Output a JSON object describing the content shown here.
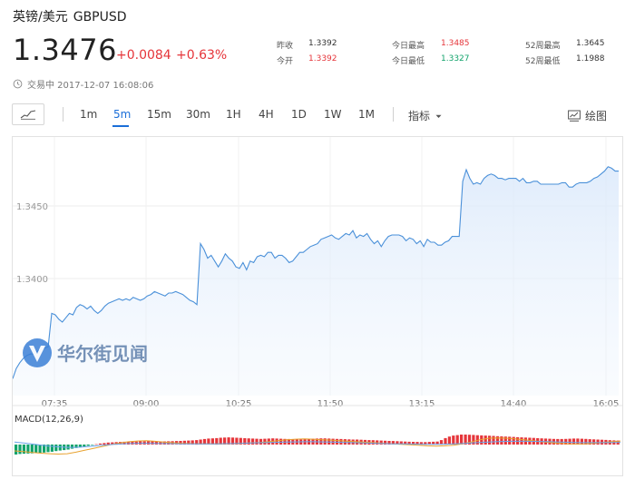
{
  "header": {
    "name": "英镑/美元",
    "code": "GBPUSD",
    "price": "1.3476",
    "change": "+0.0084",
    "change_pct": "+0.63%",
    "status": "交易中 2017-12-07 16:08:06"
  },
  "stats": [
    {
      "label": "昨收",
      "value": "1.3392",
      "tone": "neutral"
    },
    {
      "label": "今开",
      "value": "1.3392",
      "tone": "up"
    },
    {
      "label": "今日最高",
      "value": "1.3485",
      "tone": "up"
    },
    {
      "label": "今日最低",
      "value": "1.3327",
      "tone": "down"
    },
    {
      "label": "52周最高",
      "value": "1.3645",
      "tone": "neutral"
    },
    {
      "label": "52周最低",
      "value": "1.1988",
      "tone": "neutral"
    }
  ],
  "toolbar": {
    "periods": [
      "1m",
      "5m",
      "15m",
      "30m",
      "1H",
      "4H",
      "1D",
      "1W",
      "1M"
    ],
    "active_period": "5m",
    "indicator_label": "指标",
    "draw_label": "绘图",
    "icons": [
      "trend-line-icon",
      "chevron-down-icon",
      "drawing-icon",
      "clock-icon"
    ]
  },
  "colors": {
    "line": "#4a90d9",
    "up": "#e5353a",
    "down": "#11a36b",
    "accent": "#1a6ed8"
  },
  "watermark": "华尔街见闻",
  "chart_data": [
    {
      "type": "area",
      "x_ticks": [
        "07:35",
        "09:00",
        "10:25",
        "11:50",
        "13:15",
        "14:40",
        "16:05"
      ],
      "y_ticks": [
        "1.3400",
        "1.3450"
      ],
      "ylim": [
        1.333,
        1.3495
      ],
      "grid": true,
      "series": [
        {
          "values": [
            1.3331,
            1.3338,
            1.3342,
            1.3345,
            1.3347,
            1.3348,
            1.3348,
            1.335,
            1.3351,
            1.3352,
            1.3353,
            1.3376,
            1.3375,
            1.3372,
            1.337,
            1.3373,
            1.3376,
            1.3375,
            1.338,
            1.3382,
            1.3381,
            1.3379,
            1.3381,
            1.3378,
            1.3376,
            1.3378,
            1.3381,
            1.3383,
            1.3384,
            1.3385,
            1.3386,
            1.3385,
            1.3386,
            1.3385,
            1.3387,
            1.3386,
            1.3385,
            1.3386,
            1.3388,
            1.3389,
            1.3391,
            1.339,
            1.3389,
            1.3388,
            1.339,
            1.339,
            1.3391,
            1.339,
            1.3389,
            1.3387,
            1.3385,
            1.3384,
            1.3382,
            1.3424,
            1.342,
            1.3414,
            1.3416,
            1.3412,
            1.3408,
            1.3412,
            1.3417,
            1.3414,
            1.3412,
            1.3408,
            1.3407,
            1.3411,
            1.3406,
            1.3412,
            1.3411,
            1.3415,
            1.3416,
            1.3415,
            1.3418,
            1.3418,
            1.3414,
            1.3416,
            1.3416,
            1.3414,
            1.3411,
            1.3412,
            1.3415,
            1.3418,
            1.3418,
            1.342,
            1.3422,
            1.3423,
            1.3424,
            1.3427,
            1.3428,
            1.3429,
            1.343,
            1.3428,
            1.3427,
            1.3429,
            1.3431,
            1.343,
            1.3433,
            1.3428,
            1.343,
            1.3429,
            1.3431,
            1.3427,
            1.3424,
            1.3426,
            1.3422,
            1.3426,
            1.3429,
            1.343,
            1.343,
            1.343,
            1.3429,
            1.3426,
            1.3428,
            1.3427,
            1.3424,
            1.3426,
            1.3422,
            1.3427,
            1.3425,
            1.3425,
            1.3423,
            1.3423,
            1.3425,
            1.3426,
            1.3429,
            1.3429,
            1.3429,
            1.3467,
            1.3475,
            1.3469,
            1.3465,
            1.3466,
            1.3465,
            1.3469,
            1.3471,
            1.3472,
            1.3471,
            1.3469,
            1.3469,
            1.3468,
            1.3469,
            1.3469,
            1.3469,
            1.3467,
            1.3469,
            1.3466,
            1.3466,
            1.3467,
            1.3467,
            1.3465,
            1.3465,
            1.3465,
            1.3465,
            1.3465,
            1.3465,
            1.3466,
            1.3466,
            1.3463,
            1.3463,
            1.3465,
            1.3466,
            1.3466,
            1.3466,
            1.3467,
            1.3469,
            1.347,
            1.3472,
            1.3474,
            1.3477,
            1.3476,
            1.3474,
            1.3474
          ]
        }
      ]
    },
    {
      "type": "bar",
      "title": "MACD(12,26,9)",
      "bars": [
        -1.0,
        -0.95,
        -0.92,
        -0.9,
        -0.88,
        -0.85,
        -0.82,
        -0.8,
        -0.75,
        -0.72,
        -0.65,
        -0.6,
        -0.55,
        -0.5,
        -0.42,
        -0.35,
        -0.28,
        -0.2,
        -0.12,
        -0.05,
        0.04,
        0.1,
        0.15,
        0.2,
        0.22,
        0.25,
        0.26,
        0.28,
        0.28,
        0.3,
        0.3,
        0.32,
        0.32,
        0.34,
        0.34,
        0.33,
        0.32,
        0.32,
        0.33,
        0.34,
        0.35,
        0.36,
        0.38,
        0.4,
        0.42,
        0.45,
        0.5,
        0.55,
        0.6,
        0.62,
        0.65,
        0.68,
        0.7,
        0.72,
        0.7,
        0.68,
        0.66,
        0.64,
        0.62,
        0.6,
        0.58,
        0.56,
        0.58,
        0.6,
        0.62,
        0.6,
        0.58,
        0.56,
        0.55,
        0.54,
        0.52,
        0.52,
        0.54,
        0.56,
        0.58,
        0.6,
        0.62,
        0.62,
        0.6,
        0.58,
        0.56,
        0.55,
        0.54,
        0.52,
        0.5,
        0.5,
        0.48,
        0.46,
        0.45,
        0.44,
        0.42,
        0.4,
        0.38,
        0.36,
        0.35,
        0.34,
        0.32,
        0.3,
        0.28,
        0.27,
        0.26,
        0.25,
        0.25,
        0.26,
        0.28,
        0.3,
        0.45,
        0.65,
        0.8,
        0.9,
        0.95,
        1.0,
        1.0,
        0.98,
        0.96,
        0.94,
        0.92,
        0.9,
        0.88,
        0.86,
        0.84,
        0.82,
        0.8,
        0.78,
        0.76,
        0.74,
        0.72,
        0.7,
        0.68,
        0.66,
        0.64,
        0.62,
        0.6,
        0.58,
        0.56,
        0.55,
        0.55,
        0.56,
        0.58,
        0.6,
        0.6,
        0.58,
        0.56,
        0.54,
        0.52,
        0.5,
        0.48,
        0.46,
        0.44,
        0.42,
        0.4
      ],
      "dif": [
        -0.5,
        -0.55,
        -0.62,
        -0.68,
        -0.72,
        -0.75,
        -0.72,
        -0.6,
        -0.45,
        -0.3,
        -0.15,
        0.0,
        0.12,
        0.22,
        0.28,
        0.3,
        0.26,
        0.2,
        0.14,
        0.1,
        0.08,
        0.06,
        0.05,
        0.05,
        0.06,
        0.08,
        0.1,
        0.12,
        0.16,
        0.22,
        0.3,
        0.38,
        0.42,
        0.44,
        0.42,
        0.38,
        0.35,
        0.3,
        0.26,
        0.22,
        0.18,
        0.14,
        0.1,
        0.06,
        0.02,
        -0.02,
        -0.06,
        -0.1,
        -0.12,
        -0.1,
        -0.05,
        0.05,
        0.2,
        0.38,
        0.5,
        0.52,
        0.5,
        0.45,
        0.38,
        0.3,
        0.22,
        0.15,
        0.1,
        0.06,
        0.04,
        0.06,
        0.1,
        0.16,
        0.22,
        0.28
      ],
      "dea": [
        0.2,
        0.12,
        0.04,
        -0.04,
        -0.12,
        -0.18,
        -0.22,
        -0.22,
        -0.18,
        -0.12,
        -0.06,
        0.0,
        0.04,
        0.08,
        0.1,
        0.1,
        0.09,
        0.08,
        0.07,
        0.06,
        0.05,
        0.05,
        0.05,
        0.06,
        0.07,
        0.08,
        0.1,
        0.12,
        0.14,
        0.16,
        0.18,
        0.2,
        0.21,
        0.22,
        0.22,
        0.21,
        0.2,
        0.18,
        0.16,
        0.14,
        0.12,
        0.1,
        0.08,
        0.06,
        0.05,
        0.04,
        0.03,
        0.02,
        0.02,
        0.03,
        0.05,
        0.08,
        0.12,
        0.16,
        0.2,
        0.23,
        0.25,
        0.26,
        0.26,
        0.25,
        0.24,
        0.22,
        0.2,
        0.18,
        0.16,
        0.15,
        0.15,
        0.15,
        0.16,
        0.17
      ]
    }
  ]
}
